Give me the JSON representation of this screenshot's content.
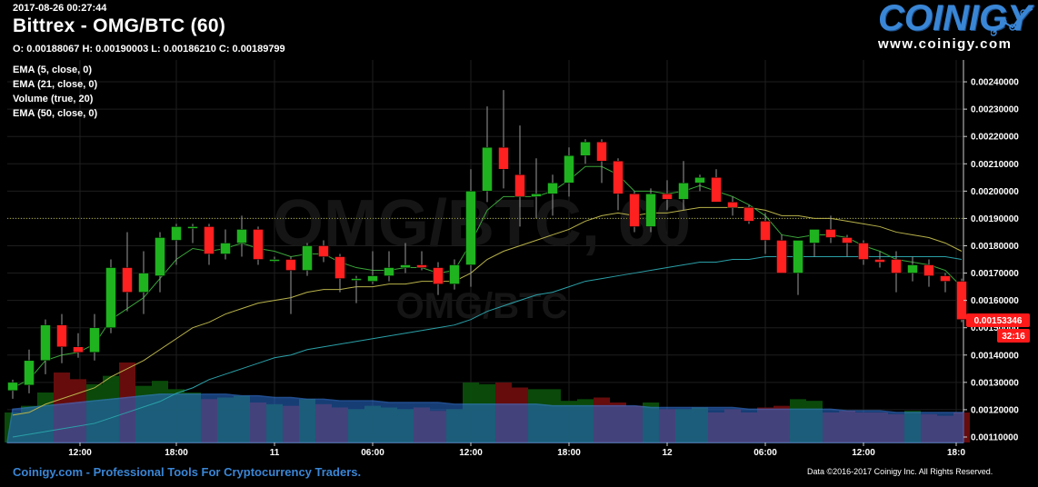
{
  "header": {
    "timestamp": "2017-08-26 00:27:44",
    "title": "Bittrex - OMG/BTC (60)",
    "ohlc": "O: 0.00188067 H: 0.00190003 L: 0.00186210 C: 0.00189799",
    "indicators": [
      "EMA (5, close, 0)",
      "EMA (21, close, 0)",
      "Volume (true, 20)",
      "EMA (50, close, 0)"
    ]
  },
  "brand": {
    "logo_text": "COINIGY",
    "url": "www.coinigy.com",
    "accent_color": "#3a86d6"
  },
  "footer": {
    "left": "Coinigy.com - Professional Tools For Cryptocurrency Traders.",
    "right": "Data ©2016-2017 Coinigy Inc. All Rights Reserved."
  },
  "watermark": {
    "main": "OMG/BTC, 60",
    "sub": "OMG/BTC"
  },
  "chart_data": {
    "type": "candlestick",
    "ylim": [
      0.00108,
      0.00248
    ],
    "y_ticks": [
      "0.00110000",
      "0.00120000",
      "0.00130000",
      "0.00140000",
      "0.00150000",
      "0.00160000",
      "0.00170000",
      "0.00180000",
      "0.00190000",
      "0.00200000",
      "0.00210000",
      "0.00220000",
      "0.00230000",
      "0.00240000"
    ],
    "x_tick_labels": [
      "12:00",
      "18:00",
      "11",
      "06:00",
      "12:00",
      "18:00",
      "12",
      "06:00",
      "12:00",
      "18:0"
    ],
    "last_price": "0.00153346",
    "countdown": "32:16",
    "reference_price": 0.0019,
    "up_color": "#1fb31f",
    "down_color": "#ff2020",
    "candles": [
      {
        "o": 0.00127,
        "h": 0.00131,
        "l": 0.00124,
        "c": 0.0013
      },
      {
        "o": 0.00129,
        "h": 0.00142,
        "l": 0.00126,
        "c": 0.00138
      },
      {
        "o": 0.00138,
        "h": 0.00153,
        "l": 0.00133,
        "c": 0.00151
      },
      {
        "o": 0.00151,
        "h": 0.00155,
        "l": 0.00137,
        "c": 0.00143
      },
      {
        "o": 0.00143,
        "h": 0.00148,
        "l": 0.00139,
        "c": 0.00141
      },
      {
        "o": 0.00141,
        "h": 0.00155,
        "l": 0.00138,
        "c": 0.0015
      },
      {
        "o": 0.0015,
        "h": 0.00175,
        "l": 0.00148,
        "c": 0.00172
      },
      {
        "o": 0.00172,
        "h": 0.00185,
        "l": 0.00156,
        "c": 0.00163
      },
      {
        "o": 0.00163,
        "h": 0.00178,
        "l": 0.00155,
        "c": 0.0017
      },
      {
        "o": 0.00169,
        "h": 0.00185,
        "l": 0.00163,
        "c": 0.00183
      },
      {
        "o": 0.00182,
        "h": 0.00188,
        "l": 0.00173,
        "c": 0.00187
      },
      {
        "o": 0.00187,
        "h": 0.00188,
        "l": 0.00181,
        "c": 0.00187
      },
      {
        "o": 0.00187,
        "h": 0.00188,
        "l": 0.00173,
        "c": 0.00177
      },
      {
        "o": 0.00177,
        "h": 0.00186,
        "l": 0.00175,
        "c": 0.00181
      },
      {
        "o": 0.00181,
        "h": 0.00191,
        "l": 0.00176,
        "c": 0.00186
      },
      {
        "o": 0.00186,
        "h": 0.00187,
        "l": 0.00173,
        "c": 0.00175
      },
      {
        "o": 0.00175,
        "h": 0.00176,
        "l": 0.00174,
        "c": 0.00175
      },
      {
        "o": 0.00175,
        "h": 0.00176,
        "l": 0.00155,
        "c": 0.00171
      },
      {
        "o": 0.00171,
        "h": 0.00181,
        "l": 0.00169,
        "c": 0.0018
      },
      {
        "o": 0.0018,
        "h": 0.00182,
        "l": 0.00174,
        "c": 0.00176
      },
      {
        "o": 0.00176,
        "h": 0.00177,
        "l": 0.00163,
        "c": 0.00168
      },
      {
        "o": 0.00168,
        "h": 0.00169,
        "l": 0.00159,
        "c": 0.00168
      },
      {
        "o": 0.00167,
        "h": 0.00178,
        "l": 0.00166,
        "c": 0.00169
      },
      {
        "o": 0.00169,
        "h": 0.00178,
        "l": 0.00167,
        "c": 0.00172
      },
      {
        "o": 0.00172,
        "h": 0.00181,
        "l": 0.0017,
        "c": 0.00173
      },
      {
        "o": 0.00173,
        "h": 0.00178,
        "l": 0.00171,
        "c": 0.00172
      },
      {
        "o": 0.00172,
        "h": 0.00174,
        "l": 0.00162,
        "c": 0.00166
      },
      {
        "o": 0.00166,
        "h": 0.00175,
        "l": 0.00164,
        "c": 0.00173
      },
      {
        "o": 0.00173,
        "h": 0.00208,
        "l": 0.00165,
        "c": 0.002
      },
      {
        "o": 0.002,
        "h": 0.00231,
        "l": 0.00196,
        "c": 0.00216
      },
      {
        "o": 0.00216,
        "h": 0.00237,
        "l": 0.00201,
        "c": 0.00208
      },
      {
        "o": 0.00206,
        "h": 0.00224,
        "l": 0.00187,
        "c": 0.00198
      },
      {
        "o": 0.00198,
        "h": 0.00212,
        "l": 0.0019,
        "c": 0.00199
      },
      {
        "o": 0.00199,
        "h": 0.00206,
        "l": 0.00191,
        "c": 0.00203
      },
      {
        "o": 0.00203,
        "h": 0.00216,
        "l": 0.00198,
        "c": 0.00213
      },
      {
        "o": 0.00213,
        "h": 0.00219,
        "l": 0.0021,
        "c": 0.00218
      },
      {
        "o": 0.00218,
        "h": 0.00219,
        "l": 0.00203,
        "c": 0.00211
      },
      {
        "o": 0.00211,
        "h": 0.00212,
        "l": 0.00193,
        "c": 0.00199
      },
      {
        "o": 0.00199,
        "h": 0.002,
        "l": 0.00185,
        "c": 0.00187
      },
      {
        "o": 0.00187,
        "h": 0.00201,
        "l": 0.00185,
        "c": 0.00199
      },
      {
        "o": 0.00199,
        "h": 0.00204,
        "l": 0.00193,
        "c": 0.00197
      },
      {
        "o": 0.00197,
        "h": 0.00211,
        "l": 0.00193,
        "c": 0.00203
      },
      {
        "o": 0.00203,
        "h": 0.00206,
        "l": 0.002,
        "c": 0.00205
      },
      {
        "o": 0.00205,
        "h": 0.00208,
        "l": 0.00196,
        "c": 0.00196
      },
      {
        "o": 0.00196,
        "h": 0.00198,
        "l": 0.00191,
        "c": 0.00194
      },
      {
        "o": 0.00194,
        "h": 0.00195,
        "l": 0.00188,
        "c": 0.00189
      },
      {
        "o": 0.00189,
        "h": 0.00192,
        "l": 0.00177,
        "c": 0.00182
      },
      {
        "o": 0.00182,
        "h": 0.00184,
        "l": 0.0017,
        "c": 0.0017
      },
      {
        "o": 0.0017,
        "h": 0.00182,
        "l": 0.00162,
        "c": 0.00182
      },
      {
        "o": 0.00181,
        "h": 0.00186,
        "l": 0.00176,
        "c": 0.00186
      },
      {
        "o": 0.00186,
        "h": 0.00191,
        "l": 0.00181,
        "c": 0.00183
      },
      {
        "o": 0.00183,
        "h": 0.00184,
        "l": 0.00176,
        "c": 0.00181
      },
      {
        "o": 0.00181,
        "h": 0.00182,
        "l": 0.00173,
        "c": 0.00175
      },
      {
        "o": 0.00175,
        "h": 0.00178,
        "l": 0.00172,
        "c": 0.00174
      },
      {
        "o": 0.00175,
        "h": 0.00178,
        "l": 0.00163,
        "c": 0.0017
      },
      {
        "o": 0.0017,
        "h": 0.00176,
        "l": 0.00167,
        "c": 0.00173
      },
      {
        "o": 0.00173,
        "h": 0.00175,
        "l": 0.00165,
        "c": 0.00169
      },
      {
        "o": 0.00169,
        "h": 0.0017,
        "l": 0.00163,
        "c": 0.00167
      },
      {
        "o": 0.00167,
        "h": 0.00168,
        "l": 0.00152,
        "c": 0.00153
      }
    ],
    "volumes": [
      18,
      22,
      30,
      42,
      38,
      35,
      40,
      48,
      34,
      37,
      32,
      30,
      26,
      27,
      28,
      24,
      23,
      22,
      26,
      23,
      21,
      20,
      22,
      21,
      20,
      21,
      19,
      20,
      36,
      35,
      36,
      33,
      32,
      32,
      25,
      26,
      27,
      24,
      22,
      24,
      20,
      20,
      21,
      18,
      20,
      18,
      21,
      22,
      26,
      25,
      18,
      19,
      18,
      18,
      17,
      19,
      17,
      16,
      18
    ],
    "ema5": [
      0.00128,
      0.00131,
      0.00138,
      0.0014,
      0.00141,
      0.00144,
      0.00153,
      0.00157,
      0.00161,
      0.00168,
      0.00175,
      0.00179,
      0.00178,
      0.00179,
      0.00181,
      0.00179,
      0.00178,
      0.00176,
      0.00177,
      0.00177,
      0.00174,
      0.00172,
      0.00171,
      0.00171,
      0.00172,
      0.00172,
      0.0017,
      0.00171,
      0.00181,
      0.00193,
      0.00198,
      0.00198,
      0.00198,
      0.002,
      0.00204,
      0.00209,
      0.00209,
      0.00206,
      0.002,
      0.002,
      0.00199,
      0.002,
      0.00202,
      0.002,
      0.00198,
      0.00195,
      0.00191,
      0.00184,
      0.00183,
      0.00184,
      0.00184,
      0.00183,
      0.0018,
      0.00178,
      0.00175,
      0.00174,
      0.00173,
      0.00171,
      0.00165
    ],
    "ema21": [
      0.00118,
      0.00119,
      0.00122,
      0.00124,
      0.00126,
      0.00128,
      0.00132,
      0.00135,
      0.00138,
      0.00142,
      0.00146,
      0.0015,
      0.00152,
      0.00155,
      0.00157,
      0.00159,
      0.0016,
      0.00161,
      0.00163,
      0.00164,
      0.00164,
      0.00165,
      0.00165,
      0.00166,
      0.00166,
      0.00167,
      0.00167,
      0.00167,
      0.0017,
      0.00175,
      0.00178,
      0.0018,
      0.00182,
      0.00184,
      0.00186,
      0.00189,
      0.00191,
      0.00192,
      0.00191,
      0.00192,
      0.00192,
      0.00193,
      0.00194,
      0.00194,
      0.00194,
      0.00194,
      0.00193,
      0.00191,
      0.00191,
      0.0019,
      0.0019,
      0.00189,
      0.00188,
      0.00187,
      0.00185,
      0.00184,
      0.00183,
      0.00181,
      0.00178
    ],
    "ema50": [
      0.0011,
      0.00111,
      0.00112,
      0.00113,
      0.00114,
      0.00115,
      0.00117,
      0.00119,
      0.00121,
      0.00123,
      0.00126,
      0.00128,
      0.00131,
      0.00133,
      0.00135,
      0.00137,
      0.00139,
      0.0014,
      0.00142,
      0.00143,
      0.00144,
      0.00145,
      0.00146,
      0.00147,
      0.00148,
      0.00149,
      0.0015,
      0.00151,
      0.00153,
      0.00156,
      0.00158,
      0.0016,
      0.00162,
      0.00163,
      0.00165,
      0.00167,
      0.00168,
      0.00169,
      0.0017,
      0.00171,
      0.00172,
      0.00173,
      0.00174,
      0.00174,
      0.00175,
      0.00175,
      0.00176,
      0.00176,
      0.00176,
      0.00176,
      0.00176,
      0.00176,
      0.00176,
      0.00176,
      0.00176,
      0.00176,
      0.00176,
      0.00176,
      0.00175
    ],
    "volume_ma": [
      20,
      21,
      22,
      23,
      24,
      25,
      26,
      27,
      28,
      29,
      29,
      29,
      29,
      29,
      28,
      28,
      27,
      27,
      26,
      26,
      25,
      25,
      25,
      24,
      24,
      24,
      24,
      23,
      23,
      23,
      23,
      23,
      23,
      22,
      22,
      22,
      22,
      22,
      22,
      21,
      21,
      21,
      21,
      21,
      21,
      20,
      20,
      20,
      20,
      20,
      20,
      19,
      19,
      19,
      18,
      18,
      18,
      18,
      18
    ]
  }
}
